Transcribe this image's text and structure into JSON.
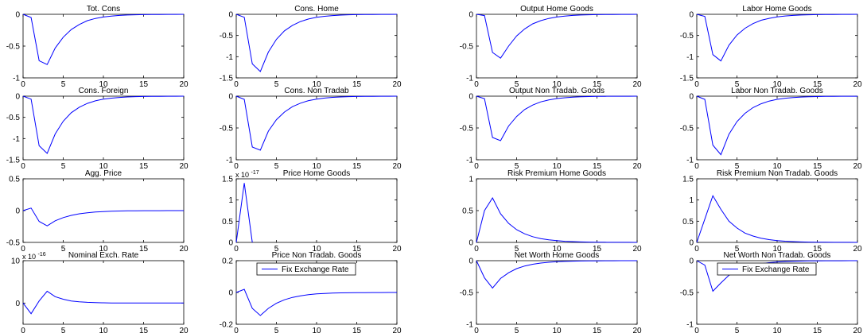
{
  "figure": {
    "line_color": "#0000ff",
    "legend_label": "Fix Exchange Rate"
  },
  "chart_data": [
    {
      "type": "line",
      "title": "Tot. Cons",
      "xlim": [
        0,
        20
      ],
      "ylim": [
        -1,
        0
      ],
      "xticks": [
        "0",
        "5",
        "10",
        "15",
        "20"
      ],
      "yticks": [
        "0",
        "-0.5",
        "-1"
      ],
      "x": [
        0,
        1,
        2,
        3,
        4,
        5,
        6,
        7,
        8,
        9,
        10,
        11,
        12,
        13,
        14,
        15,
        16,
        17,
        18,
        19,
        20
      ],
      "y": [
        0,
        -0.05,
        -0.73,
        -0.79,
        -0.53,
        -0.36,
        -0.24,
        -0.16,
        -0.1,
        -0.065,
        -0.042,
        -0.027,
        -0.017,
        -0.011,
        -0.007,
        -0.0045,
        -0.003,
        -0.002,
        -0.0012,
        -0.0008,
        -0.0005
      ]
    },
    {
      "type": "line",
      "title": "Cons. Home",
      "xlim": [
        0,
        20
      ],
      "ylim": [
        -1.5,
        0
      ],
      "xticks": [
        "0",
        "5",
        "10",
        "15",
        "20"
      ],
      "yticks": [
        "0",
        "-0.5",
        "-1",
        "-1.5"
      ],
      "x": [
        0,
        1,
        2,
        3,
        4,
        5,
        6,
        7,
        8,
        9,
        10,
        11,
        12,
        13,
        14,
        15,
        16,
        17,
        18,
        19,
        20
      ],
      "y": [
        0,
        -0.07,
        -1.17,
        -1.35,
        -0.89,
        -0.59,
        -0.39,
        -0.26,
        -0.17,
        -0.11,
        -0.07,
        -0.046,
        -0.03,
        -0.019,
        -0.012,
        -0.008,
        -0.005,
        -0.003,
        -0.002,
        -0.0013,
        -0.0008
      ]
    },
    {
      "type": "line",
      "title": "Output Home Goods",
      "xlim": [
        0,
        20
      ],
      "ylim": [
        -1,
        0
      ],
      "xticks": [
        "0",
        "5",
        "10",
        "15",
        "20"
      ],
      "yticks": [
        "0",
        "-0.5",
        "-1"
      ],
      "x": [
        0,
        1,
        2,
        3,
        4,
        5,
        6,
        7,
        8,
        9,
        10,
        11,
        12,
        13,
        14,
        15,
        16,
        17,
        18,
        19,
        20
      ],
      "y": [
        0,
        -0.02,
        -0.6,
        -0.69,
        -0.5,
        -0.34,
        -0.23,
        -0.15,
        -0.1,
        -0.065,
        -0.042,
        -0.027,
        -0.017,
        -0.011,
        -0.007,
        -0.0045,
        -0.003,
        -0.002,
        -0.0012,
        -0.0008,
        -0.0005
      ]
    },
    {
      "type": "line",
      "title": "Labor Home Goods",
      "xlim": [
        0,
        20
      ],
      "ylim": [
        -1.5,
        0
      ],
      "xticks": [
        "0",
        "5",
        "10",
        "15",
        "20"
      ],
      "yticks": [
        "0",
        "-0.5",
        "-1",
        "-1.5"
      ],
      "x": [
        0,
        1,
        2,
        3,
        4,
        5,
        6,
        7,
        8,
        9,
        10,
        11,
        12,
        13,
        14,
        15,
        16,
        17,
        18,
        19,
        20
      ],
      "y": [
        0,
        -0.05,
        -0.95,
        -1.1,
        -0.73,
        -0.49,
        -0.33,
        -0.22,
        -0.14,
        -0.095,
        -0.062,
        -0.04,
        -0.026,
        -0.017,
        -0.011,
        -0.007,
        -0.0045,
        -0.003,
        -0.002,
        -0.0012,
        -0.0008
      ]
    },
    {
      "type": "line",
      "title": "Cons. Foreign",
      "xlim": [
        0,
        20
      ],
      "ylim": [
        -1.5,
        0
      ],
      "xticks": [
        "0",
        "5",
        "10",
        "15",
        "20"
      ],
      "yticks": [
        "0",
        "-0.5",
        "-1",
        "-1.5"
      ],
      "x": [
        0,
        1,
        2,
        3,
        4,
        5,
        6,
        7,
        8,
        9,
        10,
        11,
        12,
        13,
        14,
        15,
        16,
        17,
        18,
        19,
        20
      ],
      "y": [
        0,
        -0.07,
        -1.17,
        -1.35,
        -0.89,
        -0.59,
        -0.39,
        -0.26,
        -0.17,
        -0.11,
        -0.07,
        -0.046,
        -0.03,
        -0.019,
        -0.012,
        -0.008,
        -0.005,
        -0.003,
        -0.002,
        -0.0013,
        -0.0008
      ]
    },
    {
      "type": "line",
      "title": "Cons. Non Tradab",
      "xlim": [
        0,
        20
      ],
      "ylim": [
        -1,
        0
      ],
      "xticks": [
        "0",
        "5",
        "10",
        "15",
        "20"
      ],
      "yticks": [
        "0",
        "-0.5",
        "-1"
      ],
      "x": [
        0,
        1,
        2,
        3,
        4,
        5,
        6,
        7,
        8,
        9,
        10,
        11,
        12,
        13,
        14,
        15,
        16,
        17,
        18,
        19,
        20
      ],
      "y": [
        0,
        -0.05,
        -0.8,
        -0.85,
        -0.55,
        -0.37,
        -0.25,
        -0.165,
        -0.11,
        -0.07,
        -0.046,
        -0.03,
        -0.019,
        -0.012,
        -0.008,
        -0.005,
        -0.003,
        -0.002,
        -0.0013,
        -0.0008,
        -0.0005
      ]
    },
    {
      "type": "line",
      "title": "Output Non Tradab. Goods",
      "xlim": [
        0,
        20
      ],
      "ylim": [
        -1,
        0
      ],
      "xticks": [
        "0",
        "5",
        "10",
        "15",
        "20"
      ],
      "yticks": [
        "0",
        "-0.5",
        "-1"
      ],
      "x": [
        0,
        1,
        2,
        3,
        4,
        5,
        6,
        7,
        8,
        9,
        10,
        11,
        12,
        13,
        14,
        15,
        16,
        17,
        18,
        19,
        20
      ],
      "y": [
        0,
        -0.04,
        -0.65,
        -0.7,
        -0.47,
        -0.32,
        -0.21,
        -0.14,
        -0.09,
        -0.06,
        -0.038,
        -0.025,
        -0.016,
        -0.01,
        -0.0065,
        -0.004,
        -0.0027,
        -0.0017,
        -0.0011,
        -0.0007,
        -0.0005
      ]
    },
    {
      "type": "line",
      "title": "Labor Non Tradab. Goods",
      "xlim": [
        0,
        20
      ],
      "ylim": [
        -1,
        0
      ],
      "xticks": [
        "0",
        "5",
        "10",
        "15",
        "20"
      ],
      "yticks": [
        "0",
        "-0.5",
        "-1"
      ],
      "x": [
        0,
        1,
        2,
        3,
        4,
        5,
        6,
        7,
        8,
        9,
        10,
        11,
        12,
        13,
        14,
        15,
        16,
        17,
        18,
        19,
        20
      ],
      "y": [
        0,
        -0.05,
        -0.77,
        -0.92,
        -0.6,
        -0.4,
        -0.27,
        -0.18,
        -0.12,
        -0.078,
        -0.05,
        -0.033,
        -0.021,
        -0.014,
        -0.009,
        -0.006,
        -0.0038,
        -0.0025,
        -0.0016,
        -0.001,
        -0.0007
      ]
    },
    {
      "type": "line",
      "title": "Agg. Price",
      "xlim": [
        0,
        20
      ],
      "ylim": [
        -0.5,
        0.5
      ],
      "xticks": [
        "0",
        "5",
        "10",
        "15",
        "20"
      ],
      "yticks": [
        "0.5",
        "0",
        "-0.5"
      ],
      "x": [
        0,
        1,
        2,
        3,
        4,
        5,
        6,
        7,
        8,
        9,
        10,
        11,
        12,
        13,
        14,
        15,
        16,
        17,
        18,
        19,
        20
      ],
      "y": [
        0,
        0.04,
        -0.17,
        -0.24,
        -0.16,
        -0.11,
        -0.075,
        -0.05,
        -0.034,
        -0.022,
        -0.015,
        -0.01,
        -0.0065,
        -0.0043,
        -0.0028,
        -0.0018,
        -0.0012,
        -0.0008,
        -0.0005,
        -0.0003,
        -0.0002
      ]
    },
    {
      "type": "line",
      "title": "Price Home Goods",
      "exponent": "x 10",
      "exponent_power": "-17",
      "xlim": [
        0,
        20
      ],
      "ylim": [
        0,
        1.5
      ],
      "xticks": [
        "0",
        "5",
        "10",
        "15",
        "20"
      ],
      "yticks": [
        "1.5",
        "1",
        "0.5",
        "0"
      ],
      "x": [
        0,
        1,
        2
      ],
      "y": [
        0,
        1.4,
        0
      ]
    },
    {
      "type": "line",
      "title": "Risk Premium Home Goods",
      "xlim": [
        0,
        20
      ],
      "ylim": [
        0,
        1
      ],
      "xticks": [
        "0",
        "5",
        "10",
        "15",
        "20"
      ],
      "yticks": [
        "1",
        "0.5",
        "0"
      ],
      "x": [
        0,
        1,
        2,
        3,
        4,
        5,
        6,
        7,
        8,
        9,
        10,
        11,
        12,
        13,
        14,
        15,
        16,
        17,
        18,
        19,
        20
      ],
      "y": [
        0,
        0.5,
        0.7,
        0.45,
        0.3,
        0.2,
        0.135,
        0.09,
        0.06,
        0.04,
        0.027,
        0.018,
        0.012,
        0.008,
        0.005,
        0.0035,
        0.0023,
        0.0015,
        0.001,
        0.0007,
        0.0005
      ]
    },
    {
      "type": "line",
      "title": "Risk Premium Non Tradab. Goods",
      "xlim": [
        0,
        20
      ],
      "ylim": [
        0,
        1.5
      ],
      "xticks": [
        "0",
        "5",
        "10",
        "15",
        "20"
      ],
      "yticks": [
        "1.5",
        "1",
        "0.5",
        "0"
      ],
      "x": [
        0,
        1,
        2,
        3,
        4,
        5,
        6,
        7,
        8,
        9,
        10,
        11,
        12,
        13,
        14,
        15,
        16,
        17,
        18,
        19,
        20
      ],
      "y": [
        0,
        0.55,
        1.1,
        0.78,
        0.5,
        0.34,
        0.22,
        0.15,
        0.1,
        0.065,
        0.043,
        0.028,
        0.018,
        0.012,
        0.008,
        0.005,
        0.0034,
        0.0022,
        0.0015,
        0.001,
        0.0006
      ]
    },
    {
      "type": "line",
      "title": "Nominal Exch. Rate",
      "exponent": "x 10",
      "exponent_power": "-16",
      "xlim": [
        0,
        20
      ],
      "ylim": [
        -5,
        10
      ],
      "xticks": [
        "0",
        "5",
        "10",
        "15",
        "20"
      ],
      "yticks": [
        "10",
        "0"
      ],
      "x": [
        0,
        1,
        2,
        3,
        4,
        5,
        6,
        7,
        8,
        9,
        10,
        11,
        12,
        13,
        14,
        15,
        16,
        17,
        18,
        19,
        20
      ],
      "y": [
        0,
        -2.5,
        0.5,
        2.8,
        1.5,
        0.9,
        0.5,
        0.3,
        0.18,
        0.1,
        0.06,
        0.03,
        0.02,
        0.01,
        0.005,
        0.003,
        0.002,
        0.001,
        0,
        0,
        0
      ]
    },
    {
      "type": "line",
      "title": "Price Non Tradab. Goods",
      "xlim": [
        0,
        20
      ],
      "ylim": [
        -0.2,
        0.2
      ],
      "xticks": [
        "0",
        "5",
        "10",
        "15",
        "20"
      ],
      "yticks": [
        "0.2",
        "0",
        "-0.2"
      ],
      "legend": "Fix Exchange Rate",
      "legend_position": "top",
      "x": [
        0,
        1,
        2,
        3,
        4,
        5,
        6,
        7,
        8,
        9,
        10,
        11,
        12,
        13,
        14,
        15,
        16,
        17,
        18,
        19,
        20
      ],
      "y": [
        0,
        0.02,
        -0.1,
        -0.145,
        -0.1,
        -0.068,
        -0.046,
        -0.031,
        -0.021,
        -0.014,
        -0.009,
        -0.006,
        -0.004,
        -0.0027,
        -0.0018,
        -0.0012,
        -0.0008,
        -0.0005,
        -0.0003,
        -0.0002,
        -0.0001
      ]
    },
    {
      "type": "line",
      "title": "Net Worth Home Goods",
      "xlim": [
        0,
        20
      ],
      "ylim": [
        -1,
        0
      ],
      "xticks": [
        "0",
        "5",
        "10",
        "15",
        "20"
      ],
      "yticks": [
        "0",
        "-0.5",
        "-1"
      ],
      "x": [
        0,
        1,
        2,
        3,
        4,
        5,
        6,
        7,
        8,
        9,
        10,
        11,
        12,
        13,
        14,
        15,
        16,
        17,
        18,
        19,
        20
      ],
      "y": [
        0,
        -0.27,
        -0.43,
        -0.28,
        -0.19,
        -0.125,
        -0.084,
        -0.056,
        -0.037,
        -0.025,
        -0.016,
        -0.011,
        -0.007,
        -0.0047,
        -0.003,
        -0.002,
        -0.0013,
        -0.0009,
        -0.0006,
        -0.0004,
        -0.0003
      ]
    },
    {
      "type": "line",
      "title": "Net Worth Non Tradab. Goods",
      "xlim": [
        0,
        20
      ],
      "ylim": [
        -1,
        0
      ],
      "xticks": [
        "0",
        "5",
        "10",
        "15",
        "20"
      ],
      "yticks": [
        "0",
        "-0.5",
        "-1"
      ],
      "legend": "Fix Exchange Rate",
      "legend_position": "top",
      "x": [
        0,
        1,
        2,
        3,
        4,
        5,
        6,
        7,
        8,
        9,
        10,
        11,
        12,
        13,
        14,
        15,
        16,
        17,
        18,
        19,
        20
      ],
      "y": [
        0,
        -0.07,
        -0.48,
        -0.35,
        -0.23,
        -0.155,
        -0.104,
        -0.07,
        -0.046,
        -0.031,
        -0.02,
        -0.013,
        -0.009,
        -0.006,
        -0.004,
        -0.0026,
        -0.0017,
        -0.0011,
        -0.0007,
        -0.0005,
        -0.0003
      ]
    }
  ]
}
